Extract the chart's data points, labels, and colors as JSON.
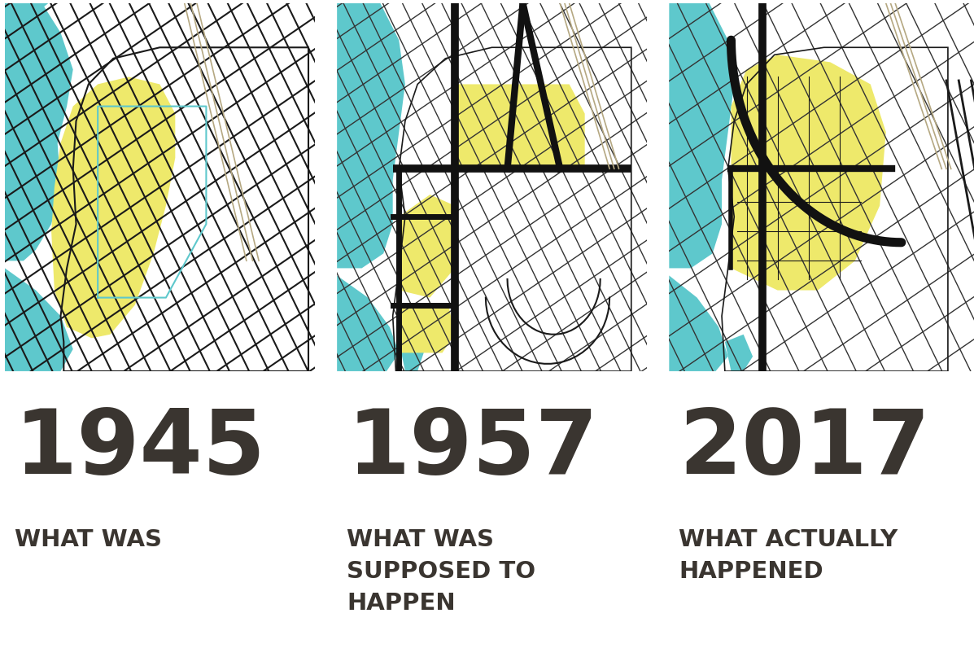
{
  "background_color": "#ffffff",
  "text_color": "#3a3530",
  "water_color": "#5ec8cc",
  "yellow_color": "#eee96b",
  "dark_line": "#1a1a1a",
  "bold_road": "#111111",
  "beige_line": "#b5a882",
  "cyan_line": "#5ec8cc",
  "panels": [
    {
      "year": "1945",
      "subtitle": "WHAT WAS"
    },
    {
      "year": "1957",
      "subtitle": "WHAT WAS\nSUPPOSED TO\nHAPPEN"
    },
    {
      "year": "2017",
      "subtitle": "WHAT ACTUALLY\nHAPPENED"
    }
  ],
  "year_fontsize": 80,
  "subtitle_fontsize": 21,
  "fig_width": 11.97,
  "fig_height": 8.07,
  "dpi": 100
}
